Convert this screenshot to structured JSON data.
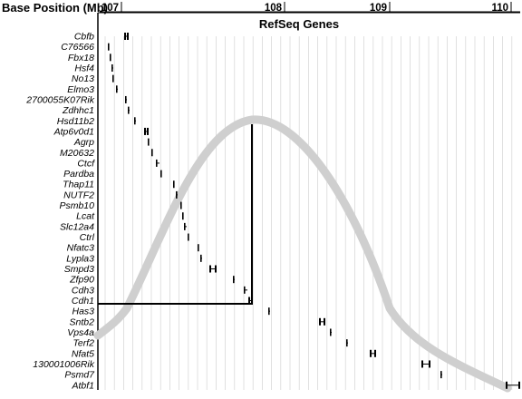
{
  "header": {
    "title": "Base Position (Mb)",
    "ticks": [
      "107",
      "108",
      "109",
      "110"
    ],
    "track_label": "RefSeq Genes"
  },
  "genes": [
    "Cbfb",
    "C76566",
    "Fbx18",
    "Hsf4",
    "No13",
    "Elmo3",
    "2700055K07Rik",
    "Zdhhc1",
    "Hsd11b2",
    "Atp6v0d1",
    "Agrp",
    "M20632",
    "Ctcf",
    "Pardba",
    "Thap11",
    "NUTF2",
    "Psmb10",
    "Lcat",
    "Slc12a4",
    "Ctrl",
    "Nfatc3",
    "Lypla3",
    "Smpd3",
    "Zfp90",
    "Cdh3",
    "Cdh1",
    "Has3",
    "Sntb2",
    "Vps4a",
    "Terf2",
    "Nfat5",
    "130001006Rik",
    "Psmd7",
    "Atbf1"
  ],
  "colors": {
    "curve": "#cfcfcf",
    "grid": "#d9d9d9",
    "marker": "#000000",
    "box": "#000000"
  }
}
